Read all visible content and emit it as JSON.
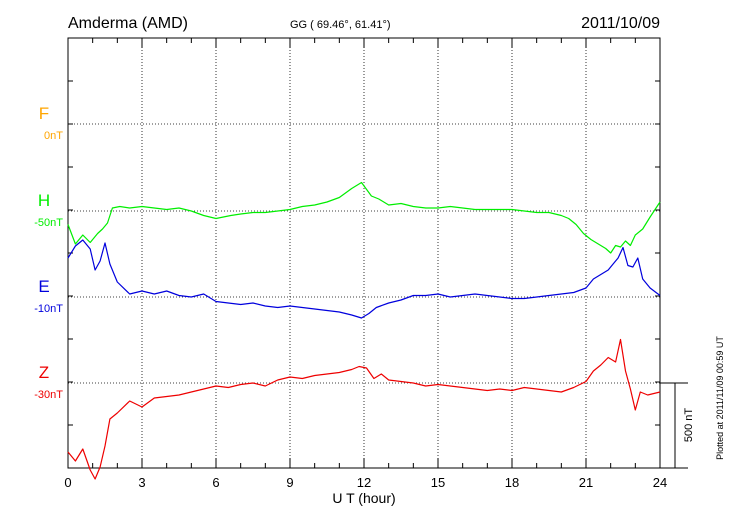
{
  "header": {
    "station": "Amderma (AMD)",
    "coords": "GG ( 69.46°,  61.41°)",
    "date": "2011/10/09"
  },
  "footer": {
    "plotted": "Plotted at 2011/11/09 00:59 UT"
  },
  "chart_data": {
    "type": "line",
    "xlabel": "U T (hour)",
    "xlim": [
      0,
      24
    ],
    "xticks": [
      "0",
      "3",
      "6",
      "9",
      "12",
      "15",
      "18",
      "21",
      "24"
    ],
    "scale_bar": "500 nT",
    "colors": {
      "F": "#ffa500",
      "H": "#00ee00",
      "E": "#0000dd",
      "Z": "#ee0000"
    },
    "series": [
      {
        "name": "F",
        "baseline": "0nT",
        "x": [],
        "values": []
      },
      {
        "name": "H",
        "baseline": "-50nT",
        "x": [
          0,
          0.3,
          0.6,
          0.9,
          1.2,
          1.4,
          1.6,
          1.8,
          2.1,
          2.5,
          3,
          3.5,
          4,
          4.5,
          5,
          5.5,
          6,
          6.3,
          6.6,
          7,
          7.5,
          8,
          8.5,
          9,
          9.5,
          10,
          10.5,
          11,
          11.5,
          11.9,
          12.3,
          12.6,
          13,
          13.5,
          14,
          14.5,
          15,
          15.5,
          16,
          16.5,
          17,
          17.5,
          18,
          18.5,
          19,
          19.5,
          20,
          20.3,
          20.6,
          20.9,
          21.2,
          21.5,
          21.8,
          22,
          22.2,
          22.4,
          22.6,
          22.8,
          23,
          23.3,
          23.6,
          24
        ],
        "values": [
          -45,
          -110,
          -80,
          -105,
          -75,
          -60,
          -40,
          10,
          15,
          10,
          15,
          10,
          5,
          10,
          0,
          -15,
          -25,
          -20,
          -15,
          -10,
          -5,
          -5,
          0,
          5,
          15,
          20,
          30,
          45,
          75,
          95,
          50,
          40,
          20,
          25,
          15,
          10,
          10,
          15,
          10,
          5,
          5,
          5,
          5,
          0,
          -5,
          -5,
          -15,
          -25,
          -45,
          -75,
          -95,
          -110,
          -125,
          -140,
          -115,
          -120,
          -100,
          -115,
          -80,
          -60,
          -20,
          30
        ]
      },
      {
        "name": "E",
        "baseline": "-10nT",
        "x": [
          0,
          0.3,
          0.6,
          0.9,
          1.1,
          1.3,
          1.5,
          1.7,
          2,
          2.5,
          3,
          3.5,
          4,
          4.5,
          5,
          5.5,
          6,
          6.5,
          7,
          7.5,
          8,
          8.5,
          9,
          9.5,
          10,
          10.5,
          11,
          11.5,
          11.9,
          12.2,
          12.5,
          13,
          13.5,
          14,
          14.5,
          15,
          15.5,
          16,
          16.5,
          17,
          17.5,
          18,
          18.5,
          19,
          19.5,
          20,
          20.5,
          21,
          21.3,
          21.6,
          21.9,
          22.1,
          22.3,
          22.5,
          22.7,
          22.9,
          23.1,
          23.3,
          23.6,
          24
        ],
        "values": [
          130,
          170,
          190,
          160,
          90,
          120,
          180,
          110,
          50,
          10,
          20,
          10,
          20,
          5,
          0,
          10,
          -15,
          -20,
          -25,
          -20,
          -30,
          -35,
          -30,
          -35,
          -40,
          -45,
          -50,
          -60,
          -70,
          -55,
          -35,
          -20,
          -10,
          5,
          5,
          10,
          0,
          5,
          10,
          5,
          0,
          -5,
          -5,
          0,
          5,
          10,
          15,
          30,
          60,
          75,
          90,
          110,
          130,
          165,
          105,
          100,
          130,
          60,
          30,
          5
        ]
      },
      {
        "name": "Z",
        "baseline": "-30nT",
        "x": [
          0,
          0.3,
          0.6,
          0.9,
          1.1,
          1.3,
          1.5,
          1.7,
          2,
          2.5,
          3,
          3.5,
          4,
          4.5,
          5,
          5.5,
          6,
          6.5,
          7,
          7.5,
          8,
          8.5,
          9,
          9.5,
          10,
          10.5,
          11,
          11.5,
          11.8,
          12.1,
          12.4,
          12.7,
          13,
          13.5,
          14,
          14.5,
          15,
          15.5,
          16,
          16.5,
          17,
          17.5,
          18,
          18.5,
          19,
          19.5,
          20,
          20.5,
          21,
          21.3,
          21.6,
          21.9,
          22.2,
          22.4,
          22.6,
          22.8,
          23,
          23.2,
          23.5,
          24
        ],
        "values": [
          -230,
          -260,
          -220,
          -290,
          -320,
          -280,
          -210,
          -120,
          -100,
          -60,
          -80,
          -50,
          -45,
          -40,
          -30,
          -20,
          -10,
          -15,
          -5,
          0,
          -10,
          10,
          20,
          15,
          25,
          30,
          35,
          45,
          55,
          50,
          15,
          30,
          10,
          5,
          0,
          -10,
          -5,
          -10,
          -15,
          -20,
          -25,
          -20,
          -25,
          -15,
          -20,
          -25,
          -30,
          -15,
          5,
          40,
          60,
          85,
          70,
          145,
          40,
          -20,
          -90,
          -30,
          -40,
          -30
        ]
      }
    ]
  }
}
